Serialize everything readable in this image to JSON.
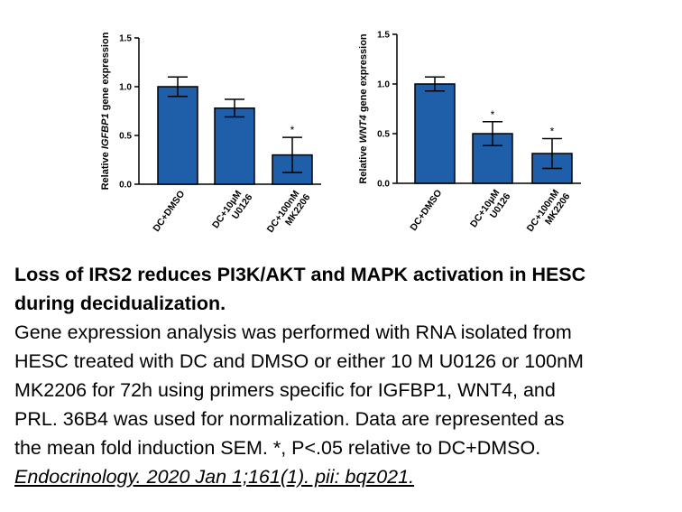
{
  "chart_data": [
    {
      "type": "bar",
      "ylabel_prefix": "Relative ",
      "ylabel_gene": "IGFBP1",
      "ylabel_suffix": " gene expression",
      "ylim": [
        0,
        1.5
      ],
      "yticks": [
        "0.0",
        "0.5",
        "1.0",
        "1.5"
      ],
      "categories": [
        [
          "DC+DMSO"
        ],
        [
          "DC+10μM",
          "U0126"
        ],
        [
          "DC+100nM",
          "MK2206"
        ]
      ],
      "values": [
        1.0,
        0.78,
        0.3
      ],
      "errors": [
        0.1,
        0.09,
        0.18
      ],
      "significance": [
        "",
        "",
        "*"
      ],
      "color": "#1f5ea8"
    },
    {
      "type": "bar",
      "ylabel_prefix": "Relative ",
      "ylabel_gene": "WNT4",
      "ylabel_suffix": " gene expression",
      "ylim": [
        0,
        1.5
      ],
      "yticks": [
        "0.0",
        "0.5",
        "1.0",
        "1.5"
      ],
      "categories": [
        [
          "DC+DMSO"
        ],
        [
          "DC+10μM",
          "U0126"
        ],
        [
          "DC+100nM",
          "MK2206"
        ]
      ],
      "values": [
        1.0,
        0.5,
        0.3
      ],
      "errors": [
        0.07,
        0.12,
        0.15
      ],
      "significance": [
        "",
        "*",
        "*"
      ],
      "color": "#1f5ea8"
    }
  ],
  "caption": {
    "title_line1": "Loss of IRS2 reduces PI3K/AKT and MAPK activation in HESC",
    "title_line2": "during decidualization.",
    "body_lines": [
      "Gene expression analysis was performed with RNA isolated from",
      "HESC treated with DC and DMSO or either 10 M U0126 or 100nM",
      "MK2206 for 72h using primers specific for IGFBP1, WNT4, and",
      "PRL. 36B4 was used for normalization. Data are represented as",
      "the mean fold induction   SEM. *, P<.05 relative to DC+DMSO."
    ],
    "citation": "Endocrinology. 2020 Jan 1;161(1). pii: bqz021."
  }
}
